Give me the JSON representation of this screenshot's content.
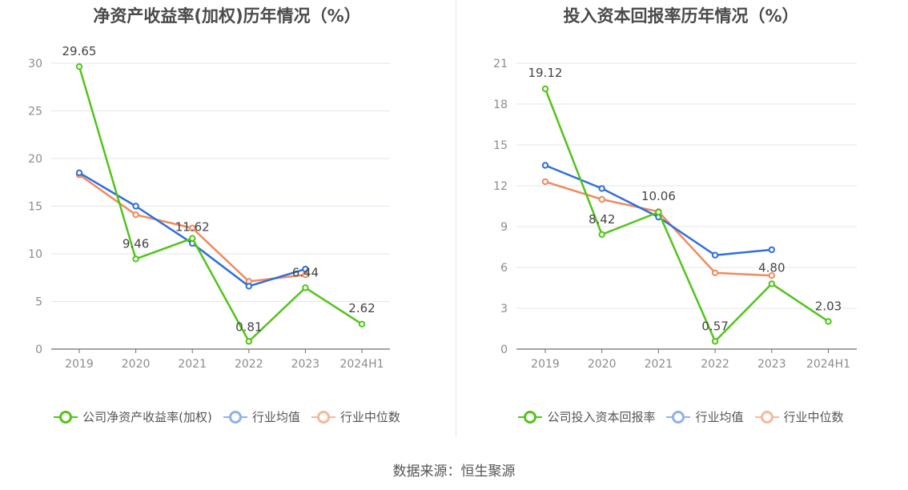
{
  "source_label": "数据来源：恒生聚源",
  "chart_data": [
    {
      "type": "line",
      "title": "净资产收益率(加权)历年情况（%）",
      "categories": [
        "2019",
        "2020",
        "2021",
        "2022",
        "2023",
        "2024H1"
      ],
      "ylim": [
        0,
        30
      ],
      "yticks": [
        0,
        5,
        10,
        15,
        20,
        25,
        30
      ],
      "grid": true,
      "legend_position": "bottom",
      "series": [
        {
          "name": "公司净资产收益率(加权)",
          "color": "#52c41a",
          "values": [
            29.65,
            9.46,
            11.62,
            0.81,
            6.44,
            2.62
          ],
          "labels": [
            "29.65",
            "9.46",
            "11.62",
            "0.81",
            "6.44",
            "2.62"
          ]
        },
        {
          "name": "行业均值",
          "color": "#2f6fdb",
          "values": [
            18.5,
            15.0,
            11.1,
            6.6,
            8.4,
            null
          ]
        },
        {
          "name": "行业中位数",
          "color": "#f08a5d",
          "values": [
            18.3,
            14.1,
            12.7,
            7.1,
            7.8,
            null
          ]
        }
      ]
    },
    {
      "type": "line",
      "title": "投入资本回报率历年情况（%）",
      "categories": [
        "2019",
        "2020",
        "2021",
        "2022",
        "2023",
        "2024H1"
      ],
      "ylim": [
        0,
        21
      ],
      "yticks": [
        0,
        3,
        6,
        9,
        12,
        15,
        18,
        21
      ],
      "grid": true,
      "legend_position": "bottom",
      "series": [
        {
          "name": "公司投入资本回报率",
          "color": "#52c41a",
          "values": [
            19.12,
            8.42,
            10.06,
            0.57,
            4.8,
            2.03
          ],
          "labels": [
            "19.12",
            "8.42",
            "10.06",
            "0.57",
            "4.80",
            "2.03"
          ]
        },
        {
          "name": "行业均值",
          "color": "#2f6fdb",
          "values": [
            13.5,
            11.8,
            9.7,
            6.9,
            7.3,
            null
          ]
        },
        {
          "name": "行业中位数",
          "color": "#f08a5d",
          "values": [
            12.3,
            11.0,
            10.1,
            5.6,
            5.4,
            null
          ]
        }
      ]
    }
  ]
}
